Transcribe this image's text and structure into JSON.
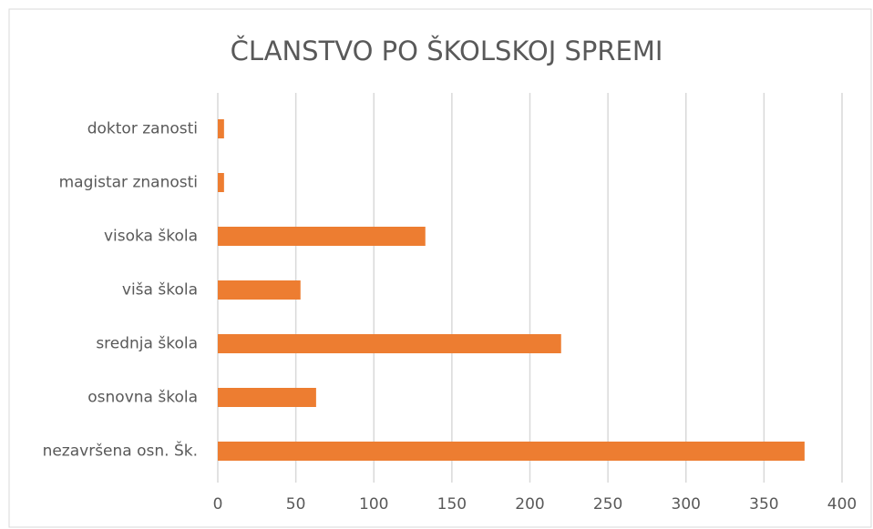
{
  "chart_data": {
    "type": "hbar",
    "title": "ČLANSTVO PO ŠKOLSKOJ SPREMI",
    "categories": [
      "doktor zanosti",
      "magistar znanosti",
      "visoka škola",
      "viša škola",
      "srednja škola",
      "osnovna škola",
      "nezavršena osn. Šk."
    ],
    "values": [
      4,
      4,
      133,
      53,
      220,
      63,
      376
    ],
    "color": "#ed7d31",
    "xlim": [
      0,
      400
    ],
    "xticks": [
      0,
      50,
      100,
      150,
      200,
      250,
      300,
      350,
      400
    ],
    "grid": true
  }
}
